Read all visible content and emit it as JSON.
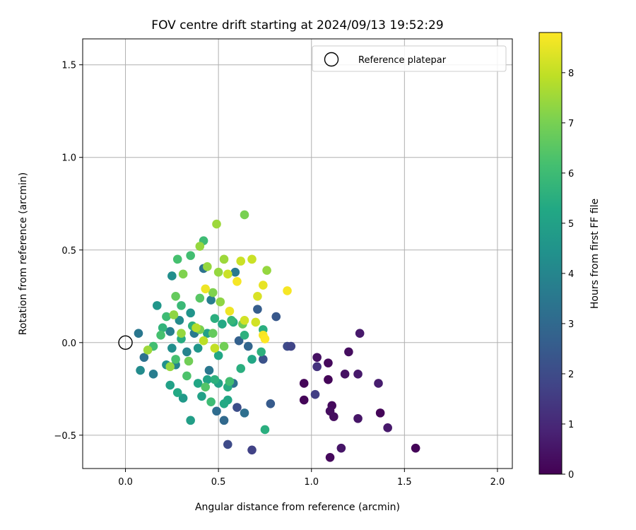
{
  "chart_data": {
    "type": "scatter",
    "title": "FOV centre drift starting at 2024/09/13 19:52:29",
    "xlabel": "Angular distance from reference (arcmin)",
    "ylabel": "Rotation from reference (arcmin)",
    "xlim": [
      -0.23,
      2.08
    ],
    "ylim": [
      -0.68,
      1.64
    ],
    "xticks": [
      0.0,
      0.5,
      1.0,
      1.5,
      2.0
    ],
    "xtick_labels": [
      "0.0",
      "0.5",
      "1.0",
      "1.5",
      "2.0"
    ],
    "yticks": [
      -0.5,
      0.0,
      0.5,
      1.0,
      1.5
    ],
    "ytick_labels": [
      "−0.5",
      "0.0",
      "0.5",
      "1.0",
      "1.5"
    ],
    "grid": true,
    "legend": {
      "position": "top-right",
      "entries": [
        {
          "label": "Reference platepar",
          "marker": "open-circle"
        }
      ]
    },
    "reference_point": {
      "x": 0.0,
      "y": 0.0
    },
    "colormap": "viridis",
    "colorbar": {
      "label": "Hours from first FF file",
      "range": [
        0,
        8.8
      ],
      "ticks": [
        0,
        1,
        2,
        3,
        4,
        5,
        6,
        7,
        8
      ],
      "tick_labels": [
        "0",
        "1",
        "2",
        "3",
        "4",
        "5",
        "6",
        "7",
        "8"
      ]
    },
    "points": [
      {
        "x": 0.96,
        "y": -0.22,
        "c": 0.1
      },
      {
        "x": 0.96,
        "y": -0.31,
        "c": 0.1
      },
      {
        "x": 1.03,
        "y": -0.08,
        "c": 0.4
      },
      {
        "x": 1.09,
        "y": -0.11,
        "c": 0.2
      },
      {
        "x": 1.09,
        "y": -0.2,
        "c": 0.1
      },
      {
        "x": 1.11,
        "y": -0.34,
        "c": 0.2
      },
      {
        "x": 1.1,
        "y": -0.37,
        "c": 0.3
      },
      {
        "x": 1.12,
        "y": -0.4,
        "c": 0.3
      },
      {
        "x": 1.1,
        "y": -0.62,
        "c": 0.2
      },
      {
        "x": 1.16,
        "y": -0.57,
        "c": 0.5
      },
      {
        "x": 1.18,
        "y": -0.17,
        "c": 0.4
      },
      {
        "x": 1.2,
        "y": -0.05,
        "c": 0.3
      },
      {
        "x": 1.25,
        "y": -0.17,
        "c": 0.6
      },
      {
        "x": 1.25,
        "y": -0.41,
        "c": 0.5
      },
      {
        "x": 1.26,
        "y": 0.05,
        "c": 0.6
      },
      {
        "x": 1.36,
        "y": -0.22,
        "c": 0.7
      },
      {
        "x": 1.37,
        "y": -0.38,
        "c": 0.1
      },
      {
        "x": 1.41,
        "y": -0.46,
        "c": 0.6
      },
      {
        "x": 1.56,
        "y": -0.57,
        "c": 0.1
      },
      {
        "x": 1.03,
        "y": -0.13,
        "c": 1.3
      },
      {
        "x": 1.02,
        "y": -0.28,
        "c": 1.6
      },
      {
        "x": 0.87,
        "y": -0.02,
        "c": 2.0
      },
      {
        "x": 0.89,
        "y": -0.02,
        "c": 1.8
      },
      {
        "x": 0.68,
        "y": -0.58,
        "c": 1.7
      },
      {
        "x": 0.55,
        "y": -0.55,
        "c": 2.0
      },
      {
        "x": 0.6,
        "y": -0.35,
        "c": 2.1
      },
      {
        "x": 0.74,
        "y": -0.09,
        "c": 2.2
      },
      {
        "x": 0.81,
        "y": 0.14,
        "c": 2.4
      },
      {
        "x": 0.78,
        "y": -0.33,
        "c": 2.5
      },
      {
        "x": 0.71,
        "y": 0.18,
        "c": 2.6
      },
      {
        "x": 0.61,
        "y": 0.01,
        "c": 2.7
      },
      {
        "x": 0.66,
        "y": -0.02,
        "c": 2.9
      },
      {
        "x": 0.53,
        "y": -0.42,
        "c": 3.0
      },
      {
        "x": 0.49,
        "y": -0.37,
        "c": 3.1
      },
      {
        "x": 0.64,
        "y": -0.38,
        "c": 3.2
      },
      {
        "x": 0.58,
        "y": -0.22,
        "c": 3.3
      },
      {
        "x": 0.45,
        "y": -0.15,
        "c": 3.5
      },
      {
        "x": 0.42,
        "y": 0.4,
        "c": 3.3
      },
      {
        "x": 0.59,
        "y": 0.38,
        "c": 3.6
      },
      {
        "x": 0.46,
        "y": 0.23,
        "c": 3.7
      },
      {
        "x": 0.37,
        "y": 0.05,
        "c": 3.6
      },
      {
        "x": 0.33,
        "y": -0.05,
        "c": 3.9
      },
      {
        "x": 0.27,
        "y": -0.12,
        "c": 3.9
      },
      {
        "x": 0.24,
        "y": 0.06,
        "c": 3.8
      },
      {
        "x": 0.07,
        "y": 0.05,
        "c": 3.5
      },
      {
        "x": 0.1,
        "y": -0.08,
        "c": 3.3
      },
      {
        "x": 0.08,
        "y": -0.15,
        "c": 4.2
      },
      {
        "x": 0.15,
        "y": -0.17,
        "c": 3.7
      },
      {
        "x": 0.22,
        "y": -0.12,
        "c": 4.4
      },
      {
        "x": 0.25,
        "y": -0.03,
        "c": 4.3
      },
      {
        "x": 0.29,
        "y": 0.12,
        "c": 4.2
      },
      {
        "x": 0.25,
        "y": 0.36,
        "c": 4.3
      },
      {
        "x": 0.35,
        "y": 0.16,
        "c": 4.5
      },
      {
        "x": 0.39,
        "y": -0.03,
        "c": 4.6
      },
      {
        "x": 0.31,
        "y": -0.3,
        "c": 4.7
      },
      {
        "x": 0.35,
        "y": -0.42,
        "c": 4.9
      },
      {
        "x": 0.41,
        "y": -0.29,
        "c": 5.0
      },
      {
        "x": 0.44,
        "y": -0.2,
        "c": 5.1
      },
      {
        "x": 0.5,
        "y": -0.22,
        "c": 5.1
      },
      {
        "x": 0.55,
        "y": -0.31,
        "c": 5.2
      },
      {
        "x": 0.55,
        "y": -0.24,
        "c": 5.4
      },
      {
        "x": 0.58,
        "y": 0.11,
        "c": 5.4
      },
      {
        "x": 0.64,
        "y": 0.04,
        "c": 5.6
      },
      {
        "x": 0.68,
        "y": -0.09,
        "c": 5.2
      },
      {
        "x": 0.73,
        "y": -0.05,
        "c": 5.6
      },
      {
        "x": 0.52,
        "y": 0.1,
        "c": 5.3
      },
      {
        "x": 0.5,
        "y": -0.07,
        "c": 5.2
      },
      {
        "x": 0.44,
        "y": 0.05,
        "c": 5.0
      },
      {
        "x": 0.3,
        "y": 0.02,
        "c": 5.4
      },
      {
        "x": 0.2,
        "y": 0.08,
        "c": 5.7
      },
      {
        "x": 0.17,
        "y": 0.2,
        "c": 4.6
      },
      {
        "x": 0.24,
        "y": -0.23,
        "c": 5.0
      },
      {
        "x": 0.28,
        "y": -0.27,
        "c": 5.3
      },
      {
        "x": 0.39,
        "y": -0.22,
        "c": 5.2
      },
      {
        "x": 0.48,
        "y": -0.2,
        "c": 5.6
      },
      {
        "x": 0.53,
        "y": -0.33,
        "c": 5.3
      },
      {
        "x": 0.62,
        "y": -0.14,
        "c": 5.5
      },
      {
        "x": 0.75,
        "y": -0.47,
        "c": 5.5
      },
      {
        "x": 0.74,
        "y": 0.07,
        "c": 5.5
      },
      {
        "x": 0.57,
        "y": 0.12,
        "c": 5.8
      },
      {
        "x": 0.48,
        "y": 0.13,
        "c": 5.5
      },
      {
        "x": 0.36,
        "y": 0.09,
        "c": 5.6
      },
      {
        "x": 0.3,
        "y": 0.2,
        "c": 5.9
      },
      {
        "x": 0.22,
        "y": 0.14,
        "c": 6.0
      },
      {
        "x": 0.19,
        "y": 0.04,
        "c": 6.2
      },
      {
        "x": 0.15,
        "y": -0.02,
        "c": 6.1
      },
      {
        "x": 0.27,
        "y": -0.09,
        "c": 6.2
      },
      {
        "x": 0.33,
        "y": -0.18,
        "c": 6.3
      },
      {
        "x": 0.43,
        "y": -0.24,
        "c": 6.4
      },
      {
        "x": 0.46,
        "y": -0.32,
        "c": 6.0
      },
      {
        "x": 0.56,
        "y": -0.21,
        "c": 6.1
      },
      {
        "x": 0.35,
        "y": 0.47,
        "c": 6.1
      },
      {
        "x": 0.28,
        "y": 0.45,
        "c": 6.2
      },
      {
        "x": 0.4,
        "y": 0.24,
        "c": 6.5
      },
      {
        "x": 0.47,
        "y": 0.05,
        "c": 6.7
      },
      {
        "x": 0.53,
        "y": -0.02,
        "c": 6.9
      },
      {
        "x": 0.63,
        "y": 0.1,
        "c": 6.8
      },
      {
        "x": 0.34,
        "y": -0.1,
        "c": 6.9
      },
      {
        "x": 0.4,
        "y": 0.07,
        "c": 7.0
      },
      {
        "x": 0.27,
        "y": 0.25,
        "c": 6.7
      },
      {
        "x": 0.31,
        "y": 0.37,
        "c": 7.1
      },
      {
        "x": 0.42,
        "y": 0.55,
        "c": 6.0
      },
      {
        "x": 0.49,
        "y": 0.64,
        "c": 7.5
      },
      {
        "x": 0.64,
        "y": 0.69,
        "c": 7.0
      },
      {
        "x": 0.4,
        "y": 0.52,
        "c": 7.4
      },
      {
        "x": 0.44,
        "y": 0.41,
        "c": 7.4
      },
      {
        "x": 0.5,
        "y": 0.38,
        "c": 7.4
      },
      {
        "x": 0.53,
        "y": 0.45,
        "c": 7.5
      },
      {
        "x": 0.47,
        "y": 0.27,
        "c": 7.1
      },
      {
        "x": 0.51,
        "y": 0.22,
        "c": 7.3
      },
      {
        "x": 0.3,
        "y": 0.05,
        "c": 7.4
      },
      {
        "x": 0.26,
        "y": 0.15,
        "c": 7.3
      },
      {
        "x": 0.24,
        "y": -0.13,
        "c": 7.4
      },
      {
        "x": 0.12,
        "y": -0.04,
        "c": 7.5
      },
      {
        "x": 0.38,
        "y": 0.08,
        "c": 7.8
      },
      {
        "x": 0.42,
        "y": 0.01,
        "c": 7.9
      },
      {
        "x": 0.48,
        "y": -0.03,
        "c": 8.0
      },
      {
        "x": 0.55,
        "y": 0.37,
        "c": 8.1
      },
      {
        "x": 0.62,
        "y": 0.44,
        "c": 8.1
      },
      {
        "x": 0.68,
        "y": 0.45,
        "c": 8.1
      },
      {
        "x": 0.76,
        "y": 0.39,
        "c": 7.4
      },
      {
        "x": 0.64,
        "y": 0.12,
        "c": 8.2
      },
      {
        "x": 0.7,
        "y": 0.11,
        "c": 8.2
      },
      {
        "x": 0.71,
        "y": 0.25,
        "c": 8.3
      },
      {
        "x": 0.74,
        "y": 0.31,
        "c": 8.5
      },
      {
        "x": 0.43,
        "y": 0.29,
        "c": 8.6
      },
      {
        "x": 0.56,
        "y": 0.17,
        "c": 8.6
      },
      {
        "x": 0.6,
        "y": 0.33,
        "c": 8.7
      },
      {
        "x": 0.74,
        "y": 0.04,
        "c": 8.7
      },
      {
        "x": 0.87,
        "y": 0.28,
        "c": 8.7
      },
      {
        "x": 0.75,
        "y": 0.02,
        "c": 8.8
      }
    ]
  }
}
